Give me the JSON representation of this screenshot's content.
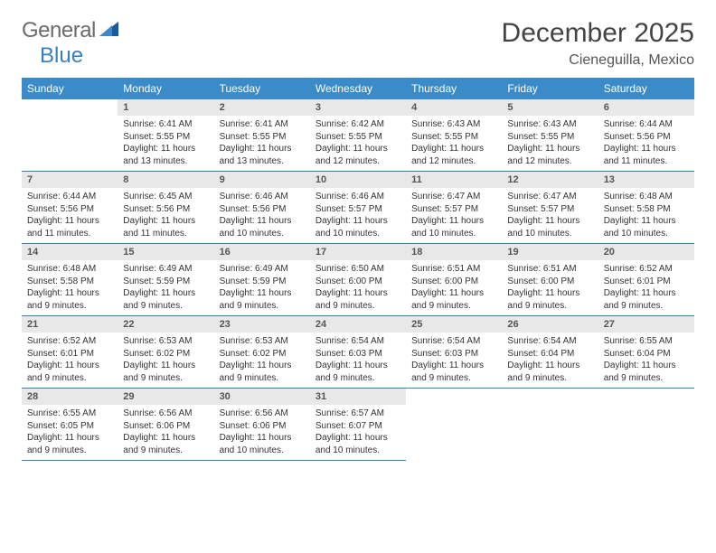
{
  "brand": {
    "part1": "General",
    "part2": "Blue"
  },
  "title": "December 2025",
  "location": "Cieneguilla, Mexico",
  "colors": {
    "header_bg": "#3b8bc8",
    "header_text": "#ffffff",
    "daynum_bg": "#e8e8e8",
    "border": "#3b7fbf",
    "title_color": "#444444",
    "body_text": "#333333"
  },
  "weekdays": [
    "Sunday",
    "Monday",
    "Tuesday",
    "Wednesday",
    "Thursday",
    "Friday",
    "Saturday"
  ],
  "weeks": [
    [
      {
        "num": "",
        "sunrise": "",
        "sunset": "",
        "daylight": ""
      },
      {
        "num": "1",
        "sunrise": "6:41 AM",
        "sunset": "5:55 PM",
        "daylight": "11 hours and 13 minutes."
      },
      {
        "num": "2",
        "sunrise": "6:41 AM",
        "sunset": "5:55 PM",
        "daylight": "11 hours and 13 minutes."
      },
      {
        "num": "3",
        "sunrise": "6:42 AM",
        "sunset": "5:55 PM",
        "daylight": "11 hours and 12 minutes."
      },
      {
        "num": "4",
        "sunrise": "6:43 AM",
        "sunset": "5:55 PM",
        "daylight": "11 hours and 12 minutes."
      },
      {
        "num": "5",
        "sunrise": "6:43 AM",
        "sunset": "5:55 PM",
        "daylight": "11 hours and 12 minutes."
      },
      {
        "num": "6",
        "sunrise": "6:44 AM",
        "sunset": "5:56 PM",
        "daylight": "11 hours and 11 minutes."
      }
    ],
    [
      {
        "num": "7",
        "sunrise": "6:44 AM",
        "sunset": "5:56 PM",
        "daylight": "11 hours and 11 minutes."
      },
      {
        "num": "8",
        "sunrise": "6:45 AM",
        "sunset": "5:56 PM",
        "daylight": "11 hours and 11 minutes."
      },
      {
        "num": "9",
        "sunrise": "6:46 AM",
        "sunset": "5:56 PM",
        "daylight": "11 hours and 10 minutes."
      },
      {
        "num": "10",
        "sunrise": "6:46 AM",
        "sunset": "5:57 PM",
        "daylight": "11 hours and 10 minutes."
      },
      {
        "num": "11",
        "sunrise": "6:47 AM",
        "sunset": "5:57 PM",
        "daylight": "11 hours and 10 minutes."
      },
      {
        "num": "12",
        "sunrise": "6:47 AM",
        "sunset": "5:57 PM",
        "daylight": "11 hours and 10 minutes."
      },
      {
        "num": "13",
        "sunrise": "6:48 AM",
        "sunset": "5:58 PM",
        "daylight": "11 hours and 10 minutes."
      }
    ],
    [
      {
        "num": "14",
        "sunrise": "6:48 AM",
        "sunset": "5:58 PM",
        "daylight": "11 hours and 9 minutes."
      },
      {
        "num": "15",
        "sunrise": "6:49 AM",
        "sunset": "5:59 PM",
        "daylight": "11 hours and 9 minutes."
      },
      {
        "num": "16",
        "sunrise": "6:49 AM",
        "sunset": "5:59 PM",
        "daylight": "11 hours and 9 minutes."
      },
      {
        "num": "17",
        "sunrise": "6:50 AM",
        "sunset": "6:00 PM",
        "daylight": "11 hours and 9 minutes."
      },
      {
        "num": "18",
        "sunrise": "6:51 AM",
        "sunset": "6:00 PM",
        "daylight": "11 hours and 9 minutes."
      },
      {
        "num": "19",
        "sunrise": "6:51 AM",
        "sunset": "6:00 PM",
        "daylight": "11 hours and 9 minutes."
      },
      {
        "num": "20",
        "sunrise": "6:52 AM",
        "sunset": "6:01 PM",
        "daylight": "11 hours and 9 minutes."
      }
    ],
    [
      {
        "num": "21",
        "sunrise": "6:52 AM",
        "sunset": "6:01 PM",
        "daylight": "11 hours and 9 minutes."
      },
      {
        "num": "22",
        "sunrise": "6:53 AM",
        "sunset": "6:02 PM",
        "daylight": "11 hours and 9 minutes."
      },
      {
        "num": "23",
        "sunrise": "6:53 AM",
        "sunset": "6:02 PM",
        "daylight": "11 hours and 9 minutes."
      },
      {
        "num": "24",
        "sunrise": "6:54 AM",
        "sunset": "6:03 PM",
        "daylight": "11 hours and 9 minutes."
      },
      {
        "num": "25",
        "sunrise": "6:54 AM",
        "sunset": "6:03 PM",
        "daylight": "11 hours and 9 minutes."
      },
      {
        "num": "26",
        "sunrise": "6:54 AM",
        "sunset": "6:04 PM",
        "daylight": "11 hours and 9 minutes."
      },
      {
        "num": "27",
        "sunrise": "6:55 AM",
        "sunset": "6:04 PM",
        "daylight": "11 hours and 9 minutes."
      }
    ],
    [
      {
        "num": "28",
        "sunrise": "6:55 AM",
        "sunset": "6:05 PM",
        "daylight": "11 hours and 9 minutes."
      },
      {
        "num": "29",
        "sunrise": "6:56 AM",
        "sunset": "6:06 PM",
        "daylight": "11 hours and 9 minutes."
      },
      {
        "num": "30",
        "sunrise": "6:56 AM",
        "sunset": "6:06 PM",
        "daylight": "11 hours and 10 minutes."
      },
      {
        "num": "31",
        "sunrise": "6:57 AM",
        "sunset": "6:07 PM",
        "daylight": "11 hours and 10 minutes."
      },
      {
        "num": "",
        "sunrise": "",
        "sunset": "",
        "daylight": ""
      },
      {
        "num": "",
        "sunrise": "",
        "sunset": "",
        "daylight": ""
      },
      {
        "num": "",
        "sunrise": "",
        "sunset": "",
        "daylight": ""
      }
    ]
  ],
  "labels": {
    "sunrise": "Sunrise: ",
    "sunset": "Sunset: ",
    "daylight": "Daylight: "
  }
}
